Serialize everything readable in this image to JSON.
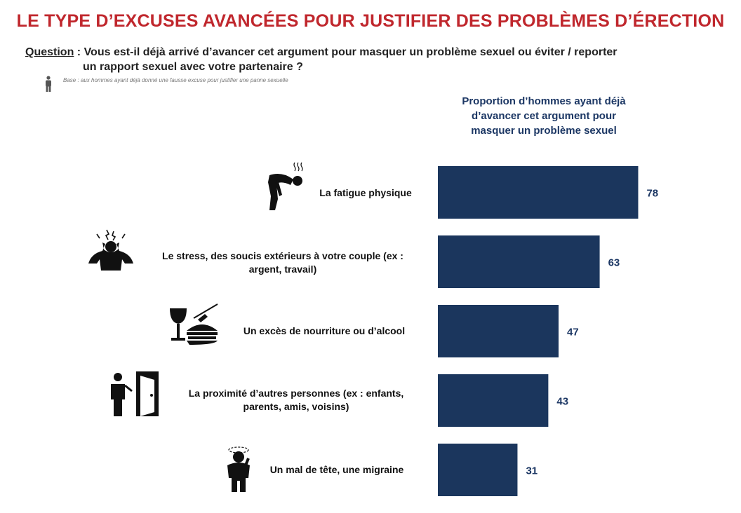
{
  "title": "LE TYPE D’EXCUSES AVANCÉES POUR JUSTIFIER DES PROBLÈMES D’ÉRECTION",
  "question": {
    "label": "Question",
    "text_line1": " : Vous est-il déjà arrivé d’avancer cet argument pour masquer un problème sexuel ou éviter / reporter",
    "text_line2": "un rapport sexuel avec votre partenaire ?"
  },
  "base": {
    "text": "Base : aux hommes ayant déjà donné une fausse excuse pour justifier une panne sexuelle",
    "icon": "person-icon"
  },
  "colors": {
    "title": "#c0272d",
    "bar": "#1b365d",
    "header": "#1c3764"
  },
  "chart_data": {
    "type": "bar",
    "orientation": "horizontal",
    "series_label": "Proportion d’hommes ayant déjà d’avancer cet argument pour masquer un problème sexuel",
    "header_lines": [
      "Proportion d’hommes ayant déjà",
      "d’avancer cet argument pour",
      "masquer un problème sexuel"
    ],
    "categories": [
      "La fatigue physique",
      "Le stress, des soucis extérieurs à votre couple (ex : argent, travail)",
      "Un excès de nourriture ou d’alcool",
      "La proximité d’autres personnes (ex : enfants, parents, amis, voisins)",
      "Un mal de tête, une migraine"
    ],
    "category_lines": [
      [
        "La fatigue physique"
      ],
      [
        "Le stress, des soucis extérieurs à votre couple (ex :",
        "argent, travail)"
      ],
      [
        "Un excès de nourriture ou d’alcool"
      ],
      [
        "La proximité d’autres personnes (ex : enfants,",
        "parents, amis, voisins)"
      ],
      [
        "Un mal de tête, une migraine"
      ]
    ],
    "category_icons": [
      "tired-person-icon",
      "stressed-person-icon",
      "food-and-wine-icon",
      "person-at-door-icon",
      "headache-person-icon"
    ],
    "values": [
      78,
      63,
      47,
      43,
      31
    ],
    "value_labels": [
      "78",
      "63",
      "47",
      "43",
      "31"
    ],
    "xlim": [
      0,
      100
    ],
    "grid": false,
    "legend": "none"
  }
}
